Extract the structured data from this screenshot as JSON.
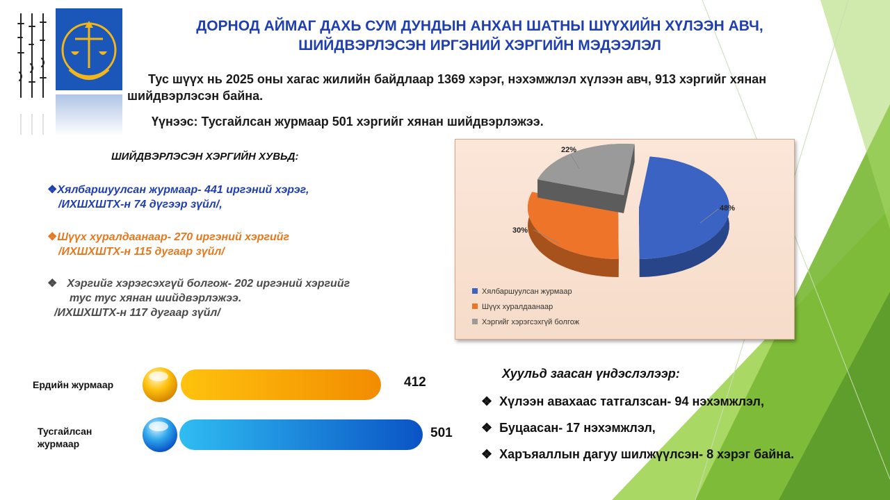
{
  "title": {
    "line1": "ДОРНОД АЙМАГ ДАХЬ СУМ ДУНДЫН АНХАН ШАТНЫ ШҮҮХИЙН ХҮЛЭЭН АВЧ,",
    "line2": "ШИЙДВЭРЛЭСЭН ИРГЭНИЙ ХЭРГИЙН МЭДЭЭЛЭЛ"
  },
  "intro": {
    "text": "Тус шүүх нь 2025 оны хагас жилийн байдлаар 1369 хэрэг, нэхэмжлэл хүлээн авч, 913 хэргийг хянан шийдвэрлэсэн байна.",
    "special": "Үүнээс: Тусгайлсан журмаар 501 хэргийг хянан шийдвэрлэжээ."
  },
  "breakdown": {
    "heading": "ШИЙДВЭРЛЭСЭН ХЭРГИЙН ХУВЬД:",
    "items": [
      {
        "bullet": "❖",
        "line1": "Хялбаршуулсан журмаар- 441 иргэний хэрэг,",
        "line2": "/ИХШХШТХ-н 74 дүгээр зүйл/,",
        "color": "#1f3fb0"
      },
      {
        "bullet": "❖",
        "line1": "Шүүх хуралдаанаар- 270 иргэний хэргийг",
        "line2": "/ИХШХШТХ-н 115 дугаар зүйл/",
        "color": "#e6781e"
      },
      {
        "bullet": "❖",
        "line1": "Хэргийг хэрэгсэхгүй болгож- 202 иргэний хэргийг",
        "line1b": "тус тус хянан шийдвэрлэжээ.",
        "line2": "/ИХШХШТХ-н 117 дугаар зүйл/",
        "color": "#4a4a4a"
      }
    ]
  },
  "chart_data": {
    "type": "pie",
    "title": "",
    "series": [
      {
        "name": "Хялбаршуулсан журмаар",
        "value": 48,
        "label": "48%",
        "color": "#3a63c4"
      },
      {
        "name": "Шүүх хуралдаанаар",
        "value": 30,
        "label": "30%",
        "color": "#ee7429"
      },
      {
        "name": "Хэргийг хэрэгсэхгүй болгож",
        "value": 22,
        "label": "22%",
        "color": "#9a9a9a"
      }
    ],
    "legend_position": "bottom-left"
  },
  "bars": [
    {
      "label": "Ердийн журмаар",
      "value": 412,
      "value_text": "412",
      "max": 501,
      "color_from": "#ffc20e",
      "color_to": "#f28c00"
    },
    {
      "label": "Тусгайлсан журмаар",
      "value": 501,
      "value_text": "501",
      "max": 501,
      "color_from": "#2fbdf2",
      "color_to": "#0a53c4"
    }
  ],
  "legal": {
    "heading": "Хуульд заасан үндэслэлээр:",
    "items": [
      {
        "bullet": "❖",
        "text": "Хүлээн авахаас татгалзсан- 94 нэхэмжлэл,"
      },
      {
        "bullet": "❖",
        "text": "Буцаасан- 17 нэхэмжлэл,"
      },
      {
        "bullet": "❖",
        "text": "Харъяаллын  дагуу шилжүүлсэн- 8 хэрэг байна."
      }
    ]
  },
  "colors": {
    "title": "#1f3fb0",
    "accent_green": "#8cc63f",
    "logo_blue": "#1b57b8",
    "logo_gold": "#f2b61b"
  },
  "icons": {
    "logo": "court-emblem-icon",
    "script": "mongolian-script-icon",
    "bar_ball": "glossy-ball-icon"
  }
}
